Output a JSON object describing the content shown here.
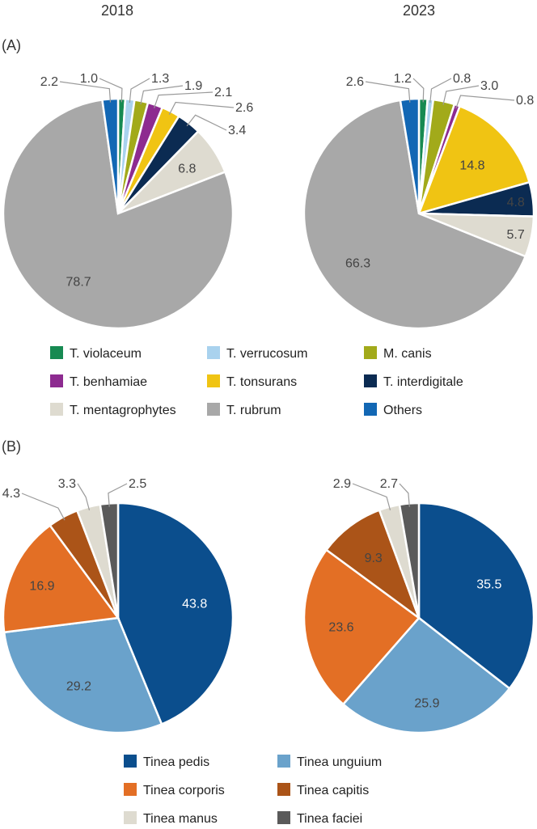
{
  "panel_a_label": "(A)",
  "panel_b_label": "(B)",
  "colors": {
    "t_violaceum": "#178a52",
    "t_verrucosum": "#a9d2ee",
    "m_canis": "#a2aa1a",
    "t_benhamiae": "#8d2b90",
    "t_tonsurans": "#f0c413",
    "t_interdigitale": "#0b2b52",
    "t_mentagrophytes": "#dedbd0",
    "t_rubrum": "#a8a8a8",
    "others": "#1267b4",
    "tinea_pedis": "#0b4e8d",
    "tinea_unguium": "#6aa2cb",
    "tinea_corporis": "#e36f25",
    "tinea_capitis": "#ab5418",
    "tinea_manus": "#dedbd0",
    "tinea_faciei": "#5a5a5a"
  },
  "chart_data": [
    {
      "type": "pie",
      "panel": "(A)",
      "title": "2018",
      "labels": [
        "T. violaceum",
        "T. verrucosum",
        "M. canis",
        "T. benhamiae",
        "T. tonsurans",
        "T. interdigitale",
        "T. mentagrophytes",
        "T. rubrum",
        "Others"
      ],
      "values": [
        1.0,
        1.3,
        1.9,
        2.1,
        2.6,
        3.4,
        6.8,
        78.7,
        2.2
      ],
      "value_labels": [
        "1.0",
        "1.3",
        "1.9",
        "2.1",
        "2.6",
        "3.4",
        "6.8",
        "78.7",
        "2.2"
      ],
      "start": "top, clockwise"
    },
    {
      "type": "pie",
      "panel": "(A)",
      "title": "2023",
      "labels": [
        "T. violaceum",
        "T. verrucosum",
        "M. canis",
        "T. benhamiae",
        "T. tonsurans",
        "T. interdigitale",
        "T. mentagrophytes",
        "T. rubrum",
        "Others"
      ],
      "values": [
        1.2,
        0.8,
        3.0,
        0.8,
        14.8,
        4.8,
        5.7,
        66.3,
        2.6
      ],
      "value_labels": [
        "1.2",
        "0.8",
        "3.0",
        "0.8",
        "14.8",
        "4.8",
        "5.7",
        "66.3",
        "2.6"
      ],
      "start": "top, clockwise"
    },
    {
      "type": "pie",
      "panel": "(B)",
      "title": "2018",
      "labels": [
        "Tinea pedis",
        "Tinea unguium",
        "Tinea corporis",
        "Tinea capitis",
        "Tinea manus",
        "Tinea faciei"
      ],
      "values": [
        43.8,
        29.2,
        16.9,
        4.3,
        3.3,
        2.5
      ],
      "value_labels": [
        "43.8",
        "29.2",
        "16.9",
        "4.3",
        "3.3",
        "2.5"
      ],
      "start": "top, clockwise"
    },
    {
      "type": "pie",
      "panel": "(B)",
      "title": "2023",
      "labels": [
        "Tinea pedis",
        "Tinea unguium",
        "Tinea corporis",
        "Tinea capitis",
        "Tinea manus",
        "Tinea faciei"
      ],
      "values": [
        35.5,
        25.9,
        23.6,
        9.3,
        2.9,
        2.7
      ],
      "value_labels": [
        "35.5",
        "25.9",
        "23.6",
        "9.3",
        "2.9",
        "2.7"
      ],
      "start": "top, clockwise"
    }
  ],
  "legend_a": [
    "T. violaceum",
    "T. verrucosum",
    "M. canis",
    "T. benhamiae",
    "T. tonsurans",
    "T. interdigitale",
    "T. mentagrophytes",
    "T. rubrum",
    "Others"
  ],
  "legend_b": [
    "Tinea pedis",
    "Tinea unguium",
    "Tinea corporis",
    "Tinea capitis",
    "Tinea manus",
    "Tinea faciei"
  ]
}
